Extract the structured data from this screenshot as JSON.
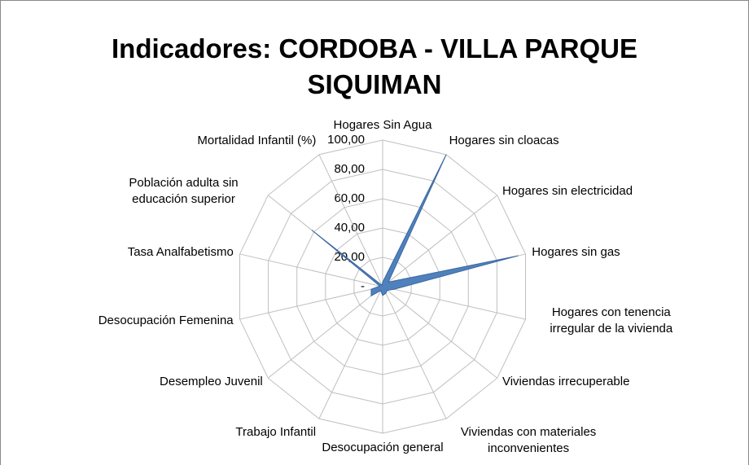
{
  "chart_data": {
    "type": "radar",
    "title": "Indicadores: CORDOBA - VILLA PARQUE SIQUIMAN",
    "categories": [
      "Hogares Sin Agua",
      "Hogares sin cloacas",
      "Hogares sin electricidad",
      "Hogares sin gas",
      "Hogares con tenencia irregular de la vivienda",
      "Viviendas irrecuperable",
      "Viviendas con materiales inconvenientes",
      "Desocupación general",
      "Trabajo Infantil",
      "Desempleo Juvenil",
      "Desocupación Femenina",
      "Tasa Analfabetismo",
      "Población adulta  sin educación superior",
      "Mortalidad Infantil (%)"
    ],
    "values": [
      3,
      100,
      5,
      95,
      8,
      4,
      5,
      6,
      3,
      10,
      8,
      2,
      62,
      1
    ],
    "color": "#4f81bd",
    "ylim": [
      0,
      100
    ],
    "yticks": [
      {
        "value": 0,
        "label": "-"
      },
      {
        "value": 20,
        "label": "20,00"
      },
      {
        "value": 40,
        "label": "40,00"
      },
      {
        "value": 60,
        "label": "60,00"
      },
      {
        "value": 80,
        "label": "80,00"
      },
      {
        "value": 100,
        "label": "100,00"
      }
    ],
    "grid": true
  }
}
